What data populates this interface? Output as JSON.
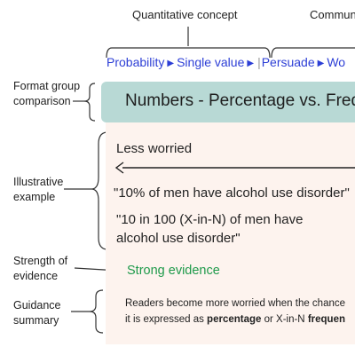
{
  "top_labels": {
    "quant_concept": "Quantitative concept",
    "communicative": "Commun"
  },
  "crumbs": {
    "quant": [
      "Probability",
      "Single value"
    ],
    "comm": [
      "Persuade",
      "Wo"
    ]
  },
  "left_labels": {
    "format_group": [
      "Format group",
      "comparison"
    ],
    "illustrative": [
      "Illustrative",
      "example"
    ],
    "strength": [
      "Strength of",
      "evidence"
    ],
    "guidance": [
      "Guidance",
      "summary"
    ]
  },
  "format_group_title": "Numbers - Percentage vs. Frequ",
  "example": {
    "direction": "Less worried",
    "quote1": "\"10% of men have alcohol use disorder\"",
    "quote2_line1": "\"10 in 100 (X-in-N) of men have",
    "quote2_line2": "alcohol use disorder\""
  },
  "evidence_label": "Strong evidence",
  "guidance": {
    "line1": "Readers become more worried when the chance",
    "line2_pre": "it is expressed as ",
    "line2_bold1": "percentage",
    "line2_mid": " or X-in-N ",
    "line2_bold2": "frequen"
  },
  "colors": {
    "crumb": "#2d3fd6",
    "group_box": "#b8d9d5",
    "card": "#fdf3ee",
    "evidence": "#1f9a4b"
  }
}
